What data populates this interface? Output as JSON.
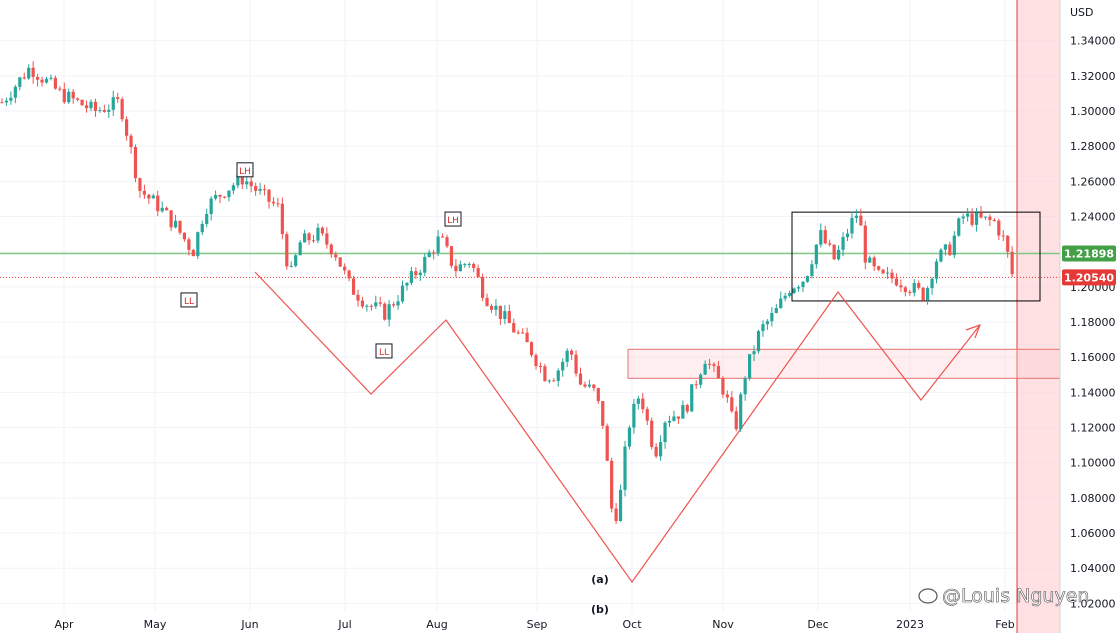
{
  "chart_data": {
    "type": "candlestick",
    "currency_label": "USD",
    "y_ticks": [
      1.02,
      1.04,
      1.06,
      1.08,
      1.1,
      1.12,
      1.14,
      1.16,
      1.18,
      1.2,
      1.22,
      1.24,
      1.26,
      1.28,
      1.3,
      1.32,
      1.34
    ],
    "y_tick_labels": [
      "1.02000",
      "1.04000",
      "1.06000",
      "1.08000",
      "1.10000",
      "1.12000",
      "1.14000",
      "1.16000",
      "1.18000",
      "1.20000",
      "1.22000",
      "1.24000",
      "1.26000",
      "1.28000",
      "1.30000",
      "1.32000",
      "1.34000"
    ],
    "ylim": [
      1.015,
      1.355
    ],
    "x_labels": [
      "Apr",
      "May",
      "Jun",
      "Jul",
      "Aug",
      "Sep",
      "Oct",
      "Nov",
      "Dec",
      "2023",
      "Feb"
    ],
    "price_badges": [
      {
        "value": 1.21898,
        "label": "1.21898",
        "color": "#43a047"
      },
      {
        "value": 1.2054,
        "label": "1.20540",
        "color": "#e53935"
      }
    ],
    "horizontal_lines": [
      {
        "value": 1.219,
        "color": "#81c784",
        "style": "solid"
      },
      {
        "value": 1.2054,
        "color": "#e53935",
        "style": "dotted"
      }
    ],
    "swing_labels": [
      {
        "text": "LH",
        "price": 1.266
      },
      {
        "text": "LL",
        "price": 1.192
      },
      {
        "text": "LH",
        "price": 1.238
      },
      {
        "text": "LL",
        "price": 1.163
      }
    ],
    "wave_labels": [
      {
        "text": "(a)",
        "price": 1.035
      },
      {
        "text": "(b)",
        "price": 1.018
      }
    ],
    "rect_zones": [
      {
        "price_top": 1.2425,
        "price_bottom": 1.192,
        "color": "#000000",
        "fill": "none"
      },
      {
        "price_top": 1.1645,
        "price_bottom": 1.148,
        "color": "#e57373",
        "fill": "rgba(255,205,210,0.35)"
      }
    ],
    "colors": {
      "up": "#26a69a",
      "down": "#ef5350",
      "highlight": "rgba(255,205,210,0.6)"
    },
    "watermark": "@Louis Nguyen",
    "watermark_icon": "weibo-icon"
  }
}
